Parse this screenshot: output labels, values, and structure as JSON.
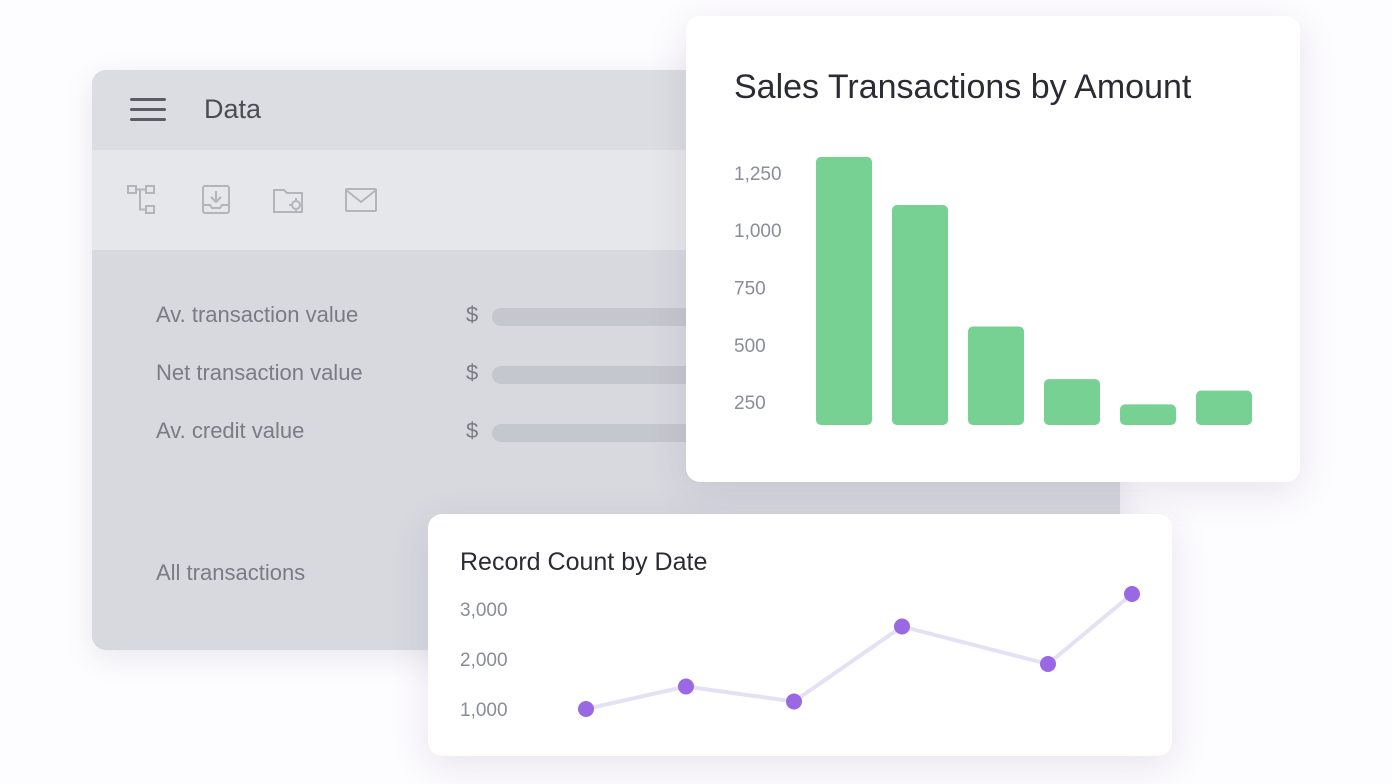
{
  "panel": {
    "title": "Data",
    "toolbar": [
      "hierarchy-icon",
      "download-tray-icon",
      "folder-settings-icon",
      "mail-icon"
    ],
    "metrics": [
      {
        "label": "Av. transaction value",
        "currency": "$"
      },
      {
        "label": "Net transaction value",
        "currency": "$"
      },
      {
        "label": "Av. credit value",
        "currency": "$"
      }
    ],
    "all_transactions_label": "All transactions"
  },
  "chart_data": [
    {
      "type": "bar",
      "title": "Sales Transactions by Amount",
      "values": [
        1320,
        1110,
        580,
        350,
        240,
        300
      ],
      "ylim": [
        150,
        1350
      ],
      "yticks": [
        "1,250",
        "1,000",
        "750",
        "500",
        "250"
      ],
      "ytick_values": [
        1250,
        1000,
        750,
        500,
        250
      ],
      "grid": false,
      "color": "#76d193"
    },
    {
      "type": "line",
      "title": "Record Count by Date",
      "values": [
        1000,
        1450,
        1150,
        2650,
        1900,
        3300
      ],
      "ylim": [
        500,
        3500
      ],
      "yticks": [
        "3,000",
        "2,000",
        "1,000"
      ],
      "ytick_values": [
        3000,
        2000,
        1000
      ],
      "grid": false,
      "color": "#9a68e3",
      "line_color": "#e6e0f5"
    }
  ]
}
